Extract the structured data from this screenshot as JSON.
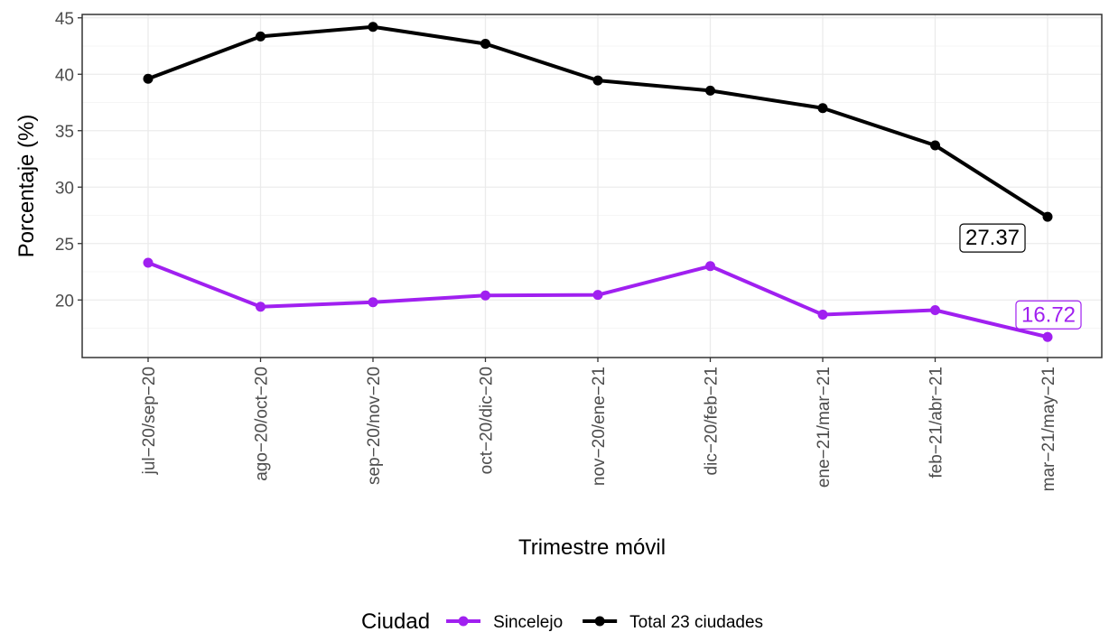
{
  "chart_data": {
    "type": "line",
    "title": "",
    "xlabel": "Trimestre móvil",
    "ylabel": "Porcentaje (%)",
    "categories": [
      "jul−20/sep−20",
      "ago−20/oct−20",
      "sep−20/nov−20",
      "oct−20/dic−20",
      "nov−20/ene−21",
      "dic−20/feb−21",
      "ene−21/mar−21",
      "feb−21/abr−21",
      "mar−21/may−21"
    ],
    "yticks": [
      20,
      25,
      30,
      35,
      40,
      45
    ],
    "ylim": [
      14.9,
      45.3
    ],
    "grid": true,
    "series": [
      {
        "name": "Sincelejo",
        "color": "#a020f0",
        "values": [
          23.3,
          19.4,
          19.8,
          20.4,
          20.45,
          23.0,
          18.7,
          19.1,
          16.72
        ]
      },
      {
        "name": "Total 23 ciudades",
        "color": "#000000",
        "values": [
          39.6,
          43.35,
          44.2,
          42.7,
          39.45,
          38.55,
          37.0,
          33.7,
          27.37
        ]
      }
    ],
    "annotations": [
      {
        "series": 1,
        "index": 8,
        "text": "27.37"
      },
      {
        "series": 0,
        "index": 8,
        "text": "16.72"
      }
    ],
    "legend": {
      "title": "Ciudad",
      "position": "bottom"
    }
  }
}
